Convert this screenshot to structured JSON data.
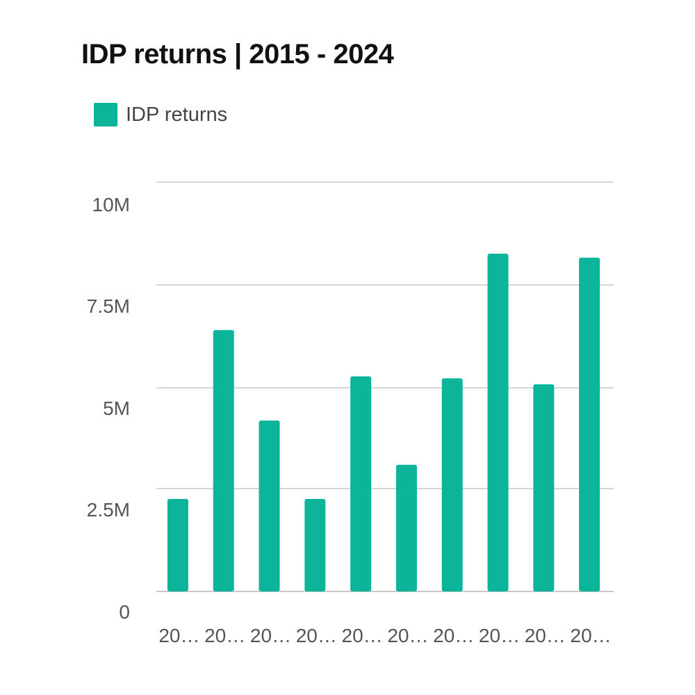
{
  "title": "IDP returns | 2015 - 2024",
  "legend": {
    "label": "IDP returns",
    "color": "#0cb59a"
  },
  "chart_data": {
    "type": "bar",
    "title": "IDP returns | 2015 - 2024",
    "xlabel": "",
    "ylabel": "",
    "categories": [
      "20…",
      "20…",
      "20…",
      "20…",
      "20…",
      "20…",
      "20…",
      "20…",
      "20…",
      "20…"
    ],
    "series": [
      {
        "name": "IDP returns",
        "color": "#0cb59a",
        "values": [
          2300000,
          6500000,
          4250000,
          2300000,
          5350000,
          3150000,
          5300000,
          8400000,
          5150000,
          8300000
        ]
      }
    ],
    "ylim": [
      0,
      10000000
    ],
    "yticks": [
      0,
      2500000,
      5000000,
      7500000,
      10000000
    ],
    "ytick_labels": [
      "0",
      "2.5M",
      "5M",
      "7.5M",
      "10M"
    ],
    "grid": true,
    "legend_position": "top-left"
  }
}
